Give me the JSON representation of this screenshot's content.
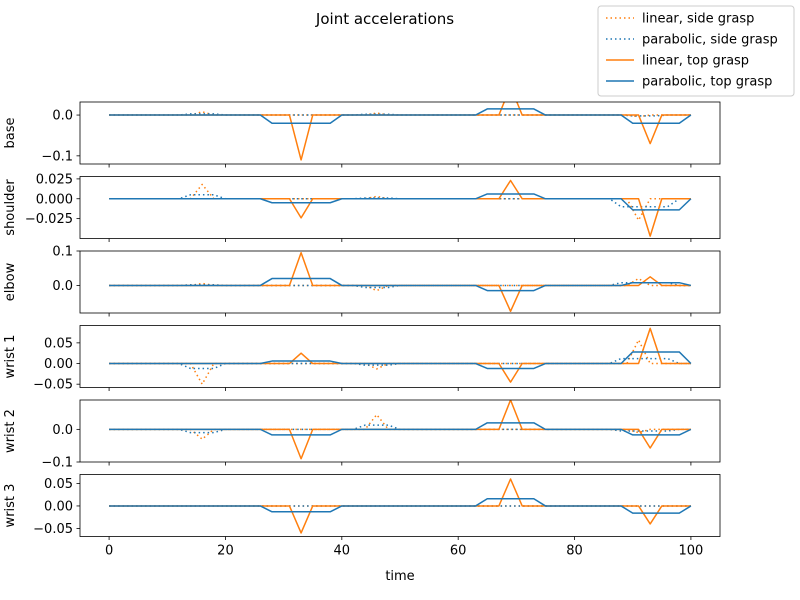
{
  "chart_data": {
    "type": "line",
    "title": "Joint accelerations",
    "xlabel": "time",
    "xlim": [
      -5,
      105
    ],
    "xticks": [
      "0",
      "20",
      "40",
      "60",
      "80",
      "100"
    ],
    "grid": false,
    "legend_position": "top-right",
    "colors": {
      "linear": "#ff7f0e",
      "parabolic": "#1f77b4"
    },
    "legend": [
      {
        "label": "linear, side grasp",
        "color": "#ff7f0e",
        "dash": "dotted"
      },
      {
        "label": "parabolic, side grasp",
        "color": "#1f77b4",
        "dash": "dotted"
      },
      {
        "label": "linear, top grasp",
        "color": "#ff7f0e",
        "dash": "solid"
      },
      {
        "label": "parabolic, top grasp",
        "color": "#1f77b4",
        "dash": "solid"
      }
    ],
    "panels": [
      {
        "ylabel": "base",
        "ylim": [
          -0.12,
          0.032
        ],
        "yticks": [
          {
            "value": 0.0,
            "label": "0.0"
          },
          {
            "value": -0.1,
            "label": "−0.1"
          }
        ],
        "series": [
          {
            "label": "linear, side grasp",
            "x": [
              0,
              14,
              16,
              18,
              44,
              46,
              48,
              89,
              91,
              93,
              100
            ],
            "y": [
              0,
              0,
              0.008,
              0,
              0,
              0.005,
              0,
              0,
              -0.004,
              0,
              0
            ]
          },
          {
            "label": "parabolic, side grasp",
            "x": [
              0,
              12,
              14,
              18,
              20,
              42,
              44,
              48,
              50,
              88,
              90,
              94,
              96,
              100
            ],
            "y": [
              0,
              0,
              0.003,
              0.003,
              0,
              0,
              0.002,
              0.002,
              0,
              0,
              -0.002,
              -0.002,
              0,
              0
            ]
          },
          {
            "label": "linear, top grasp",
            "x": [
              0,
              31,
              33,
              35,
              67,
              69,
              71,
              91,
              93,
              95,
              100
            ],
            "y": [
              0,
              0,
              -0.11,
              0,
              0,
              0.07,
              0,
              0,
              -0.07,
              0,
              0
            ]
          },
          {
            "label": "parabolic, top grasp",
            "x": [
              0,
              26,
              28,
              38,
              40,
              63,
              65,
              73,
              75,
              88,
              90,
              98,
              100
            ],
            "y": [
              0,
              0,
              -0.02,
              -0.02,
              0,
              0,
              0.015,
              0.015,
              0,
              0,
              -0.02,
              -0.02,
              0
            ]
          }
        ]
      },
      {
        "ylabel": "shoulder",
        "ylim": [
          -0.05,
          0.028
        ],
        "yticks": [
          {
            "value": 0.025,
            "label": "0.025"
          },
          {
            "value": 0.0,
            "label": "0.000"
          },
          {
            "value": -0.025,
            "label": "−0.025"
          }
        ],
        "series": [
          {
            "label": "linear, side grasp",
            "x": [
              0,
              14,
              16,
              18,
              44,
              46,
              48,
              89,
              91,
              93,
              100
            ],
            "y": [
              0,
              0,
              0.018,
              0,
              0,
              0.003,
              0,
              0,
              -0.027,
              0,
              0
            ]
          },
          {
            "label": "parabolic, side grasp",
            "x": [
              0,
              12,
              14,
              18,
              20,
              42,
              44,
              48,
              50,
              86,
              88,
              96,
              98,
              100
            ],
            "y": [
              0,
              0,
              0.005,
              0.005,
              0,
              0,
              0.001,
              0.001,
              0,
              0,
              -0.01,
              -0.01,
              0,
              0
            ]
          },
          {
            "label": "linear, top grasp",
            "x": [
              0,
              31,
              33,
              35,
              67,
              69,
              71,
              91,
              93,
              95,
              100
            ],
            "y": [
              0,
              0,
              -0.024,
              0,
              0,
              0.023,
              0,
              0,
              -0.047,
              0,
              0
            ]
          },
          {
            "label": "parabolic, top grasp",
            "x": [
              0,
              26,
              28,
              38,
              40,
              63,
              65,
              73,
              75,
              88,
              90,
              98,
              100
            ],
            "y": [
              0,
              0,
              -0.005,
              -0.005,
              0,
              0,
              0.006,
              0.006,
              0,
              0,
              -0.014,
              -0.014,
              0
            ]
          }
        ]
      },
      {
        "ylabel": "elbow",
        "ylim": [
          -0.08,
          0.1
        ],
        "yticks": [
          {
            "value": 0.1,
            "label": "0.1"
          },
          {
            "value": 0.0,
            "label": "0.0"
          }
        ],
        "series": [
          {
            "label": "linear, side grasp",
            "x": [
              0,
              14,
              16,
              18,
              44,
              46,
              48,
              89,
              91,
              93,
              100
            ],
            "y": [
              0,
              0,
              0.006,
              0,
              0,
              -0.015,
              0,
              0,
              0.02,
              0,
              0
            ]
          },
          {
            "label": "parabolic, side grasp",
            "x": [
              0,
              12,
              14,
              18,
              20,
              42,
              44,
              48,
              50,
              86,
              88,
              96,
              98,
              100
            ],
            "y": [
              0,
              0,
              0.002,
              0.002,
              0,
              0,
              -0.006,
              -0.006,
              0,
              0,
              0.008,
              0.008,
              0,
              0
            ]
          },
          {
            "label": "linear, top grasp",
            "x": [
              0,
              31,
              33,
              35,
              67,
              69,
              71,
              91,
              93,
              95,
              100
            ],
            "y": [
              0,
              0,
              0.095,
              0,
              0,
              -0.075,
              0,
              0,
              0.025,
              0,
              0
            ]
          },
          {
            "label": "parabolic, top grasp",
            "x": [
              0,
              26,
              28,
              38,
              40,
              63,
              65,
              73,
              75,
              88,
              90,
              98,
              100
            ],
            "y": [
              0,
              0,
              0.02,
              0.02,
              0,
              0,
              -0.015,
              -0.015,
              0,
              0,
              0.008,
              0.008,
              0
            ]
          }
        ]
      },
      {
        "ylabel": "wrist 1",
        "ylim": [
          -0.058,
          0.092
        ],
        "yticks": [
          {
            "value": 0.05,
            "label": "0.05"
          },
          {
            "value": 0.0,
            "label": "0.00"
          },
          {
            "value": -0.05,
            "label": "−0.05"
          }
        ],
        "series": [
          {
            "label": "linear, side grasp",
            "x": [
              0,
              14,
              16,
              18,
              44,
              46,
              48,
              89,
              91,
              93,
              100
            ],
            "y": [
              0,
              0,
              -0.05,
              0,
              0,
              -0.013,
              0,
              0,
              0.057,
              0,
              0
            ]
          },
          {
            "label": "parabolic, side grasp",
            "x": [
              0,
              12,
              14,
              18,
              20,
              42,
              44,
              48,
              50,
              86,
              88,
              96,
              98,
              100
            ],
            "y": [
              0,
              0,
              -0.012,
              -0.012,
              0,
              0,
              -0.004,
              -0.004,
              0,
              0,
              0.012,
              0.012,
              0,
              0
            ]
          },
          {
            "label": "linear, top grasp",
            "x": [
              0,
              31,
              33,
              35,
              67,
              69,
              71,
              91,
              93,
              95,
              100
            ],
            "y": [
              0,
              0,
              0.025,
              0,
              0,
              -0.045,
              0,
              0,
              0.085,
              0,
              0
            ]
          },
          {
            "label": "parabolic, top grasp",
            "x": [
              0,
              26,
              28,
              38,
              40,
              63,
              65,
              73,
              75,
              88,
              90,
              98,
              100
            ],
            "y": [
              0,
              0,
              0.006,
              0.006,
              0,
              0,
              -0.012,
              -0.012,
              0,
              0,
              0.028,
              0.028,
              0
            ]
          }
        ]
      },
      {
        "ylabel": "wrist 2",
        "ylim": [
          -0.1,
          0.09
        ],
        "yticks": [
          {
            "value": 0.0,
            "label": "0.0"
          },
          {
            "value": -0.1,
            "label": "−0.1"
          }
        ],
        "series": [
          {
            "label": "linear, side grasp",
            "x": [
              0,
              14,
              16,
              18,
              44,
              46,
              48,
              89,
              91,
              93,
              100
            ],
            "y": [
              0,
              0,
              -0.03,
              0,
              0,
              0.045,
              0,
              0,
              -0.01,
              0,
              0
            ]
          },
          {
            "label": "parabolic, side grasp",
            "x": [
              0,
              12,
              14,
              18,
              20,
              42,
              44,
              48,
              50,
              86,
              88,
              96,
              98,
              100
            ],
            "y": [
              0,
              0,
              -0.01,
              -0.01,
              0,
              0,
              0.013,
              0.013,
              0,
              0,
              -0.005,
              -0.005,
              0,
              0
            ]
          },
          {
            "label": "linear, top grasp",
            "x": [
              0,
              31,
              33,
              35,
              67,
              69,
              71,
              91,
              93,
              95,
              100
            ],
            "y": [
              0,
              0,
              -0.09,
              0,
              0,
              0.09,
              0,
              0,
              -0.057,
              0,
              0
            ]
          },
          {
            "label": "parabolic, top grasp",
            "x": [
              0,
              26,
              28,
              38,
              40,
              63,
              65,
              73,
              75,
              88,
              90,
              98,
              100
            ],
            "y": [
              0,
              0,
              -0.017,
              -0.017,
              0,
              0,
              0.02,
              0.02,
              0,
              0,
              -0.017,
              -0.017,
              0
            ]
          }
        ]
      },
      {
        "ylabel": "wrist 3",
        "ylim": [
          -0.068,
          0.07
        ],
        "yticks": [
          {
            "value": 0.05,
            "label": "0.05"
          },
          {
            "value": 0.0,
            "label": "0.00"
          },
          {
            "value": -0.05,
            "label": "−0.05"
          }
        ],
        "series": [
          {
            "label": "linear, side grasp",
            "x": [
              0,
              14,
              16,
              18,
              44,
              46,
              48,
              89,
              91,
              93,
              100
            ],
            "y": [
              0,
              0,
              0,
              0,
              0,
              0,
              0,
              0,
              0,
              0,
              0
            ]
          },
          {
            "label": "parabolic, side grasp",
            "x": [
              0,
              100
            ],
            "y": [
              0,
              0
            ]
          },
          {
            "label": "linear, top grasp",
            "x": [
              0,
              31,
              33,
              35,
              67,
              69,
              71,
              91,
              93,
              95,
              100
            ],
            "y": [
              0,
              0,
              -0.06,
              0,
              0,
              0.06,
              0,
              0,
              -0.04,
              0,
              0
            ]
          },
          {
            "label": "parabolic, top grasp",
            "x": [
              0,
              26,
              28,
              38,
              40,
              63,
              65,
              73,
              75,
              88,
              90,
              98,
              100
            ],
            "y": [
              0,
              0,
              -0.013,
              -0.013,
              0,
              0,
              0.016,
              0.016,
              0,
              0,
              -0.016,
              -0.016,
              0
            ]
          }
        ]
      }
    ]
  }
}
